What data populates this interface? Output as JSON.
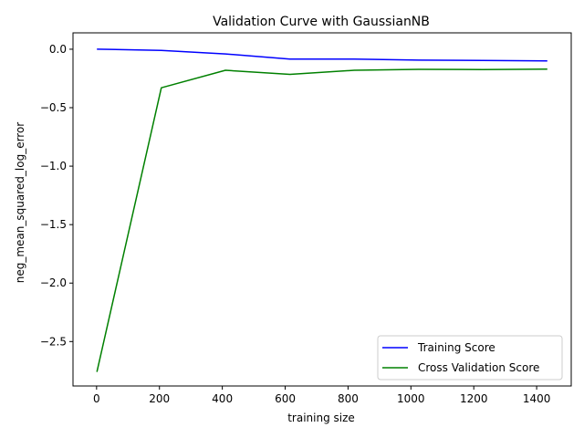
{
  "chart_data": {
    "type": "line",
    "title": "Validation Curve with GaussianNB",
    "xlabel": "training size",
    "ylabel": "neg_mean_squared_log_error",
    "xlim": [
      -75,
      1510
    ],
    "ylim": [
      -2.88,
      0.14
    ],
    "xticks": [
      0,
      200,
      400,
      600,
      800,
      1000,
      1200,
      1400
    ],
    "yticks": [
      0.0,
      -0.5,
      -1.0,
      -1.5,
      -2.0,
      -2.5
    ],
    "xtick_labels": [
      "0",
      "200",
      "400",
      "600",
      "800",
      "1000",
      "1200",
      "1400"
    ],
    "ytick_labels": [
      "0.0",
      "−0.5",
      "−1.0",
      "−1.5",
      "−2.0",
      "−2.5"
    ],
    "grid": false,
    "legend_position": "lower-right",
    "x": [
      1,
      206,
      410,
      615,
      820,
      1025,
      1229,
      1434
    ],
    "series": [
      {
        "name": "Training Score",
        "color": "#0000ff",
        "values": [
          0.0,
          -0.01,
          -0.04,
          -0.085,
          -0.085,
          -0.093,
          -0.096,
          -0.1
        ]
      },
      {
        "name": "Cross Validation Score",
        "color": "#008000",
        "values": [
          -2.76,
          -0.33,
          -0.18,
          -0.215,
          -0.18,
          -0.172,
          -0.174,
          -0.17
        ]
      }
    ]
  }
}
